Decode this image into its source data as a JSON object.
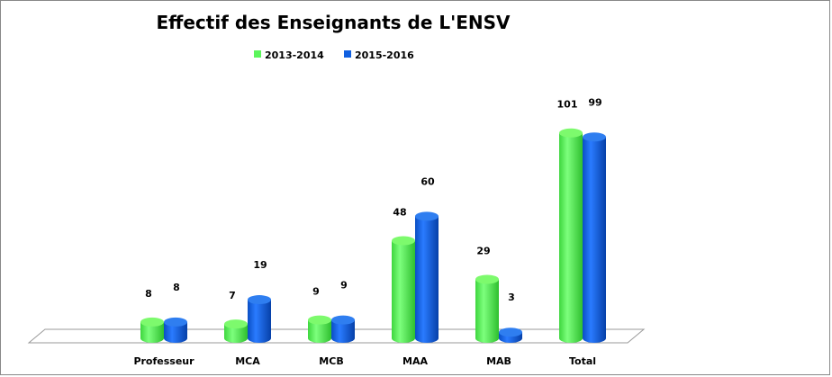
{
  "chart_data": {
    "type": "bar",
    "style": "3d-cylinder",
    "title": "Effectif des Enseignants de L'ENSV",
    "categories": [
      "Professeur",
      "MCA",
      "MCB",
      "MAA",
      "MAB",
      "Total"
    ],
    "series": [
      {
        "name": "2013-2014",
        "color": "#5cf55c",
        "values": [
          8,
          7,
          9,
          48,
          29,
          101
        ]
      },
      {
        "name": "2015-2016",
        "color": "#1060e0",
        "values": [
          8,
          19,
          9,
          60,
          3,
          99
        ]
      }
    ],
    "legend": "top",
    "grid": false,
    "data_labels": true
  }
}
